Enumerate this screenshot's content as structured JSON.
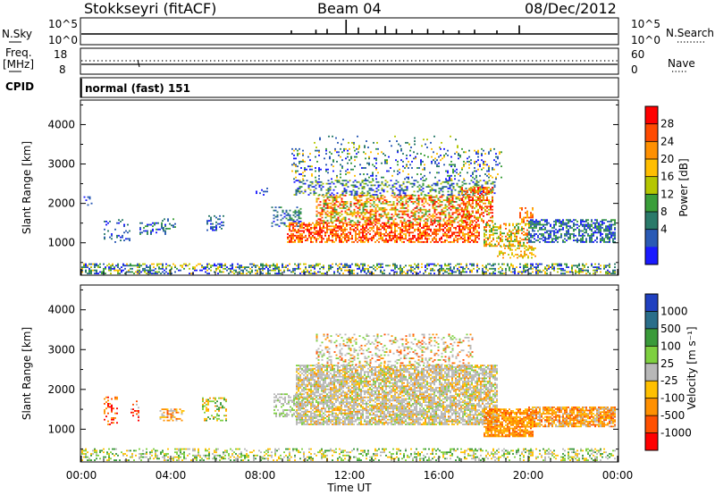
{
  "header": {
    "station": "Stokkseyri (fitACF)",
    "beam": "Beam 04",
    "date": "08/Dec/2012"
  },
  "left_labels": {
    "nsky": "N.Sky",
    "freq": "Freq.",
    "freq_unit": "[MHz]",
    "cpid": "CPID"
  },
  "right_labels": {
    "nsearch": "N.Search",
    "nave": "Nave"
  },
  "cpid_text": "normal (fast) 151",
  "chart_data": [
    {
      "type": "line",
      "name": "noise",
      "left_ticks": [
        "10^5",
        "10^0"
      ],
      "right_ticks": [
        "10^5",
        "10^0"
      ],
      "spikes_x_hours": [
        9.4,
        10.5,
        11.0,
        11.85,
        12.4,
        13.2,
        13.6,
        14.1,
        14.8,
        15.5,
        16.2,
        16.9,
        17.6,
        18.6,
        19.6
      ],
      "spikes_h": [
        0.25,
        0.3,
        0.35,
        1.0,
        0.45,
        0.3,
        0.55,
        0.35,
        0.3,
        0.35,
        0.25,
        0.25,
        0.3,
        0.25,
        0.6
      ]
    },
    {
      "type": "line",
      "name": "frequency",
      "left_ticks": [
        "18",
        "8"
      ],
      "right_ticks": [
        "60",
        "0"
      ]
    },
    {
      "type": "heatmap",
      "name": "power",
      "ylabel": "Slant Range [km]",
      "y_ticks": [
        1000,
        2000,
        3000,
        4000
      ],
      "ylim": [
        200,
        4600
      ],
      "xlim": [
        0,
        24
      ],
      "colorbar_label": "Power [dB]",
      "colorbar_ticks": [
        "28",
        "24",
        "20",
        "16",
        "12",
        "8",
        "4"
      ],
      "colors": [
        "#ff0000",
        "#ff4a00",
        "#ff9000",
        "#ffbe00",
        "#b5c600",
        "#3a9e3a",
        "#2a7a6a",
        "#2a5ab5",
        "#1a1aff"
      ]
    },
    {
      "type": "heatmap",
      "name": "velocity",
      "ylabel": "Slant Range [km]",
      "xlabel": "Time UT",
      "y_ticks": [
        1000,
        2000,
        3000,
        4000
      ],
      "ylim": [
        200,
        4600
      ],
      "xlim": [
        0,
        24
      ],
      "x_ticks": [
        "00:00",
        "04:00",
        "08:00",
        "12:00",
        "16:00",
        "20:00",
        "00:00"
      ],
      "colorbar_label": "Velocity [m s⁻¹]",
      "colorbar_ticks": [
        "1000",
        "500",
        "100",
        "25",
        "-25",
        "-100",
        "-500",
        "-1000"
      ],
      "colors": [
        "#2040c0",
        "#2a6e8a",
        "#3a9a3a",
        "#7ed040",
        "#b8b8b8",
        "#ffc000",
        "#ff9000",
        "#ff5000",
        "#ff0000"
      ]
    }
  ]
}
